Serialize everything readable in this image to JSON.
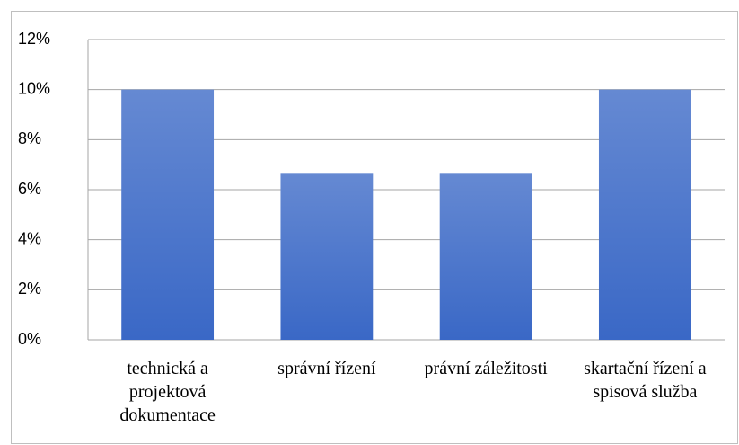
{
  "chart_data": {
    "type": "bar",
    "categories": [
      "technická a projektová dokumentace",
      "správní řízení",
      "právní záležitosti",
      "skartační řízení a spisová služba"
    ],
    "values": [
      10,
      6.67,
      6.67,
      10
    ],
    "color": "#3a68c6",
    "ylim": [
      0,
      12
    ],
    "yticks": [
      {
        "value": 0,
        "label": "0%"
      },
      {
        "value": 2,
        "label": "2%"
      },
      {
        "value": 4,
        "label": "4%"
      },
      {
        "value": 6,
        "label": "6%"
      },
      {
        "value": 8,
        "label": "8%"
      },
      {
        "value": 10,
        "label": "10%"
      },
      {
        "value": 12,
        "label": "12%"
      }
    ],
    "grid": true
  }
}
